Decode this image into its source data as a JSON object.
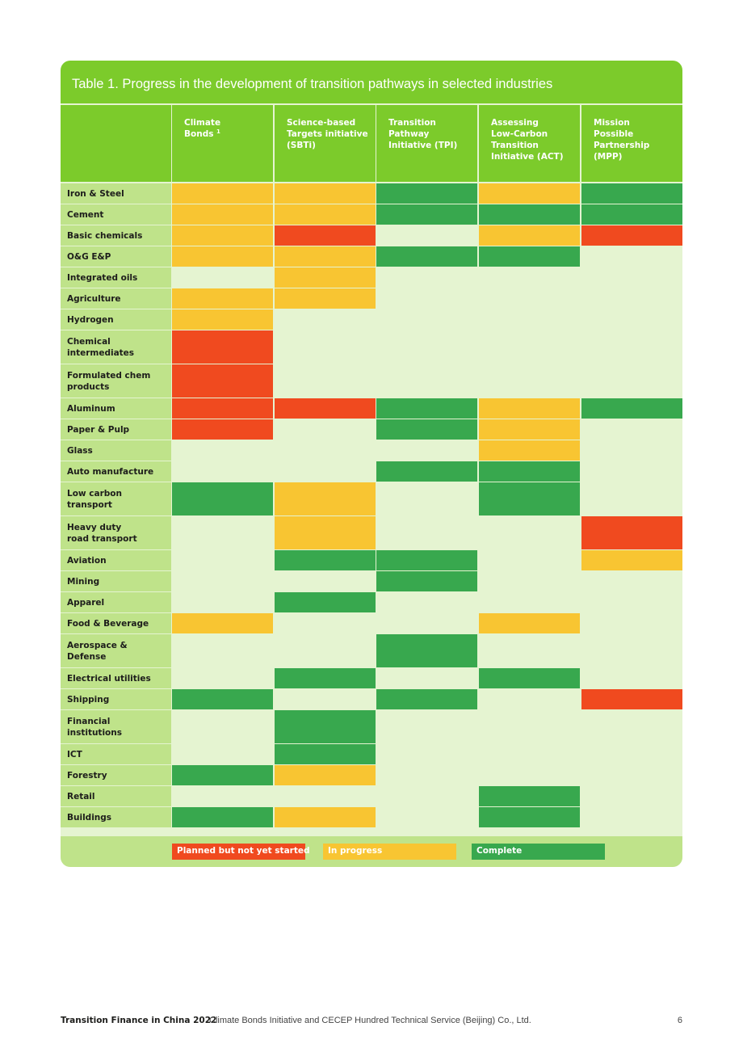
{
  "table": {
    "title": "Table 1. Progress in the development of transition pathways in selected industries",
    "columns": [
      {
        "label": "Climate\nBonds",
        "sup": "1"
      },
      {
        "label": "Science-based\nTargets initiative\n(SBTi)",
        "sup": ""
      },
      {
        "label": "Transition\nPathway\nInitiative (TPI)",
        "sup": ""
      },
      {
        "label": "Assessing\nLow-Carbon\nTransition\nInitiative (ACT)",
        "sup": ""
      },
      {
        "label": "Mission\nPossible\nPartnership\n(MPP)",
        "sup": ""
      }
    ],
    "rows": [
      {
        "label": "Iron & Steel",
        "status": [
          "in_progress",
          "in_progress",
          "complete",
          "in_progress",
          "complete"
        ]
      },
      {
        "label": "Cement",
        "status": [
          "in_progress",
          "in_progress",
          "complete",
          "complete",
          "complete"
        ]
      },
      {
        "label": "Basic chemicals",
        "status": [
          "in_progress",
          "planned",
          "none",
          "in_progress",
          "planned"
        ]
      },
      {
        "label": "O&G E&P",
        "status": [
          "in_progress",
          "in_progress",
          "complete",
          "complete",
          "none"
        ]
      },
      {
        "label": "Integrated oils",
        "status": [
          "none",
          "in_progress",
          "none",
          "none",
          "none"
        ]
      },
      {
        "label": "Agriculture",
        "status": [
          "in_progress",
          "in_progress",
          "none",
          "none",
          "none"
        ]
      },
      {
        "label": "Hydrogen",
        "status": [
          "in_progress",
          "none",
          "none",
          "none",
          "none"
        ]
      },
      {
        "label": "Chemical\nintermediates",
        "status": [
          "planned",
          "none",
          "none",
          "none",
          "none"
        ]
      },
      {
        "label": "Formulated chem\nproducts",
        "status": [
          "planned",
          "none",
          "none",
          "none",
          "none"
        ]
      },
      {
        "label": "Aluminum",
        "status": [
          "planned",
          "planned",
          "complete",
          "in_progress",
          "complete"
        ]
      },
      {
        "label": "Paper & Pulp",
        "status": [
          "planned",
          "none",
          "complete",
          "in_progress",
          "none"
        ]
      },
      {
        "label": "Glass",
        "status": [
          "none",
          "none",
          "none",
          "in_progress",
          "none"
        ]
      },
      {
        "label": "Auto manufacture",
        "status": [
          "none",
          "none",
          "complete",
          "complete",
          "none"
        ]
      },
      {
        "label": "Low carbon\ntransport",
        "status": [
          "complete",
          "in_progress",
          "none",
          "complete",
          "none"
        ]
      },
      {
        "label": "Heavy duty\nroad transport",
        "status": [
          "none",
          "in_progress",
          "none",
          "none",
          "planned"
        ]
      },
      {
        "label": "Aviation",
        "status": [
          "none",
          "complete",
          "complete",
          "none",
          "in_progress"
        ]
      },
      {
        "label": "Mining",
        "status": [
          "none",
          "none",
          "complete",
          "none",
          "none"
        ]
      },
      {
        "label": "Apparel",
        "status": [
          "none",
          "complete",
          "none",
          "none",
          "none"
        ]
      },
      {
        "label": "Food & Beverage",
        "status": [
          "in_progress",
          "none",
          "none",
          "in_progress",
          "none"
        ]
      },
      {
        "label": "Aerospace &\nDefense",
        "status": [
          "none",
          "none",
          "complete",
          "none",
          "none"
        ]
      },
      {
        "label": "Electrical utilities",
        "status": [
          "none",
          "complete",
          "none",
          "complete",
          "none"
        ]
      },
      {
        "label": "Shipping",
        "status": [
          "complete",
          "none",
          "complete",
          "none",
          "planned"
        ]
      },
      {
        "label": "Financial\ninstitutions",
        "status": [
          "none",
          "complete",
          "none",
          "none",
          "none"
        ]
      },
      {
        "label": "ICT",
        "status": [
          "none",
          "complete",
          "none",
          "none",
          "none"
        ]
      },
      {
        "label": "Forestry",
        "status": [
          "complete",
          "in_progress",
          "none",
          "none",
          "none"
        ]
      },
      {
        "label": "Retail",
        "status": [
          "none",
          "none",
          "none",
          "complete",
          "none"
        ]
      },
      {
        "label": "Buildings",
        "status": [
          "complete",
          "in_progress",
          "none",
          "complete",
          "none"
        ]
      }
    ],
    "legend": {
      "planned": "Planned but not yet started",
      "in_progress": "In progress",
      "complete": "Complete"
    }
  },
  "colors": {
    "header_green": "#7ccb2b",
    "label_green": "#bfe38a",
    "empty": "#e5f4d1",
    "planned": "#f04a1f",
    "in_progress": "#f8c532",
    "complete": "#38a84e"
  },
  "footer": {
    "publication": "Transition Finance in China 2022",
    "authors": "Climate Bonds Initiative and CECEP Hundred Technical Service (Beijing) Co., Ltd.",
    "page_number": "6"
  }
}
